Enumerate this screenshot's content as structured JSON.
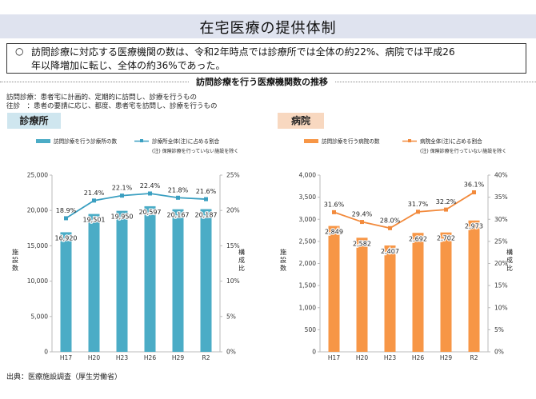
{
  "header": {
    "title": "在宅医療の提供体制",
    "summary_bullet": "○",
    "summary_line1": "訪問診療に対応する医療機関の数は、令和2年時点では診療所では全体の約22%、病院では平成26",
    "summary_line2": "年以降増加に転じ、全体の約36%であった。"
  },
  "section": {
    "title": "訪問診療を行う医療機関数の推移",
    "def1": "訪問診療：患者宅に計画的、定期的に訪問し、診療を行うもの",
    "def2": "往診　：患者の要請に応じ、都度、患者宅を訪問し、診療を行うもの"
  },
  "source": "出典：医療施設調査（厚生労働省）",
  "colors": {
    "clinic_bar": "#4bacc6",
    "clinic_line": "#3a9fc1",
    "hosp_bar": "#f79646",
    "hosp_line": "#f28a3c"
  },
  "chart_data": [
    {
      "type": "bar",
      "tag": "診療所",
      "categories": [
        "H17",
        "H20",
        "H23",
        "H26",
        "H29",
        "R2"
      ],
      "series": [
        {
          "name": "訪問診療を行う診療所の数",
          "axis": "left",
          "values": [
            16920,
            19501,
            19950,
            20597,
            20167,
            20187
          ],
          "labels": [
            "16,920",
            "19,501",
            "19,950",
            "20,597",
            "20,167",
            "20,187"
          ]
        },
        {
          "name": "診療所全体(注)に占める割合",
          "type": "line",
          "axis": "right",
          "values": [
            18.9,
            21.4,
            22.1,
            22.4,
            21.8,
            21.6
          ],
          "labels": [
            "18.9%",
            "21.4%",
            "22.1%",
            "22.4%",
            "21.8%",
            "21.6%"
          ]
        }
      ],
      "note": "(注) 保険診療を行っていない施設を除く",
      "ylabel": "施設数",
      "y2label": "構成比",
      "ylim": [
        0,
        25000
      ],
      "y2lim": [
        0,
        25
      ],
      "yticks": [
        "0",
        "5,000",
        "10,000",
        "15,000",
        "20,000",
        "25,000"
      ],
      "y2ticks": [
        "0%",
        "5%",
        "10%",
        "15%",
        "20%",
        "25%"
      ]
    },
    {
      "type": "bar",
      "tag": "病院",
      "categories": [
        "H17",
        "H20",
        "H23",
        "H26",
        "H29",
        "R2"
      ],
      "series": [
        {
          "name": "訪問診療を行う病院の数",
          "axis": "left",
          "values": [
            2849,
            2582,
            2407,
            2692,
            2702,
            2973
          ],
          "labels": [
            "2,849",
            "2,582",
            "2,407",
            "2,692",
            "2,702",
            "2,973"
          ]
        },
        {
          "name": "病院全体(注)に占める割合",
          "type": "line",
          "axis": "right",
          "values": [
            31.6,
            29.4,
            28.0,
            31.7,
            32.2,
            36.1
          ],
          "labels": [
            "31.6%",
            "29.4%",
            "28.0%",
            "31.7%",
            "32.2%",
            "36.1%"
          ]
        }
      ],
      "note": "(注) 保険診療を行っていない施設を除く",
      "ylabel": "施設数",
      "y2label": "構成比",
      "ylim": [
        0,
        4000
      ],
      "y2lim": [
        0,
        40
      ],
      "yticks": [
        "0",
        "500",
        "1,000",
        "1,500",
        "2,000",
        "2,500",
        "3,000",
        "3,500",
        "4,000"
      ],
      "y2ticks": [
        "0%",
        "5%",
        "10%",
        "15%",
        "20%",
        "25%",
        "30%",
        "35%",
        "40%"
      ]
    }
  ]
}
